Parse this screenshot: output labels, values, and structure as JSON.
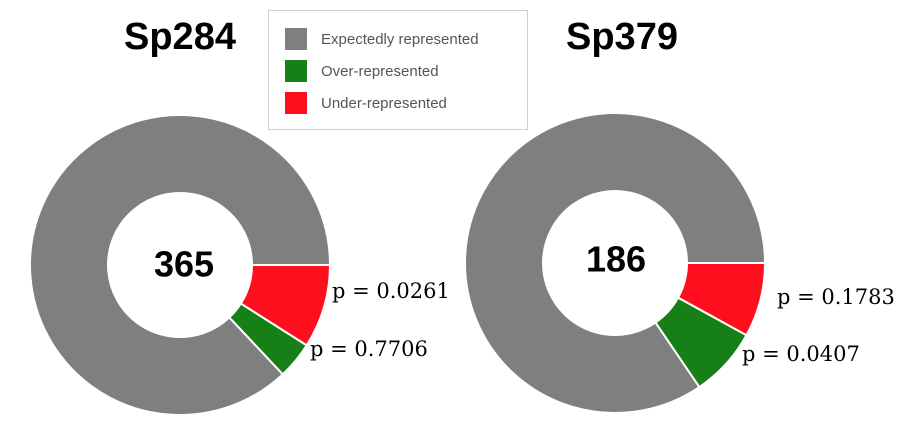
{
  "chart_data": [
    {
      "type": "pie",
      "title": "Sp284",
      "center_label": "365",
      "categories": [
        "Expectedly represented",
        "Over-represented",
        "Under-represented"
      ],
      "values": [
        0.87,
        0.04,
        0.09
      ],
      "colors": [
        "#7f7f7f",
        "#168016",
        "#ff0e1e"
      ],
      "annotations": [
        {
          "category": "Under-represented",
          "text": "p = 0.0261"
        },
        {
          "category": "Over-represented",
          "text": "p = 0.7706"
        }
      ]
    },
    {
      "type": "pie",
      "title": "Sp379",
      "center_label": "186",
      "categories": [
        "Expectedly represented",
        "Over-represented",
        "Under-represented"
      ],
      "values": [
        0.845,
        0.075,
        0.08
      ],
      "colors": [
        "#7f7f7f",
        "#168016",
        "#ff0e1e"
      ],
      "annotations": [
        {
          "category": "Under-represented",
          "text": "p = 0.1783"
        },
        {
          "category": "Over-represented",
          "text": "p = 0.0407"
        }
      ]
    }
  ],
  "legend": {
    "placement": "top-center",
    "items": [
      {
        "label": "Expectedly represented",
        "color": "#7f7f7f"
      },
      {
        "label": "Over-represented",
        "color": "#168016"
      },
      {
        "label": "Under-represented",
        "color": "#ff0e1e"
      }
    ]
  }
}
